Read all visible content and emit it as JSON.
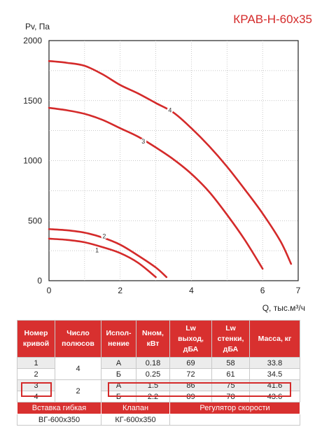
{
  "chart_data": {
    "type": "line",
    "title": "КРАВ-Н-60х35",
    "ylabel": "Pv, Па",
    "xlabel": "Q, тыс.м³/ч",
    "xlim": [
      0,
      7
    ],
    "ylim": [
      0,
      2000
    ],
    "x_ticks": [
      "0",
      "2",
      "4",
      "6",
      "7"
    ],
    "y_ticks": [
      "0",
      "500",
      "1000",
      "1500",
      "2000"
    ],
    "grid": true,
    "color": "#d42a2a",
    "series": [
      {
        "name": "1",
        "points": [
          [
            0,
            350
          ],
          [
            0.5,
            340
          ],
          [
            1.0,
            320
          ],
          [
            1.5,
            280
          ],
          [
            2.0,
            230
          ],
          [
            2.5,
            150
          ],
          [
            3.0,
            30
          ]
        ]
      },
      {
        "name": "2",
        "points": [
          [
            0,
            430
          ],
          [
            0.5,
            420
          ],
          [
            1.0,
            400
          ],
          [
            1.5,
            360
          ],
          [
            2.0,
            300
          ],
          [
            2.5,
            210
          ],
          [
            3.0,
            110
          ],
          [
            3.3,
            30
          ]
        ]
      },
      {
        "name": "3",
        "points": [
          [
            0,
            1440
          ],
          [
            0.5,
            1420
          ],
          [
            1.0,
            1390
          ],
          [
            1.5,
            1340
          ],
          [
            2.0,
            1270
          ],
          [
            2.5,
            1200
          ],
          [
            3.0,
            1110
          ],
          [
            3.5,
            1010
          ],
          [
            4.0,
            890
          ],
          [
            4.5,
            740
          ],
          [
            5.0,
            550
          ],
          [
            5.5,
            340
          ],
          [
            6.0,
            100
          ]
        ]
      },
      {
        "name": "4",
        "points": [
          [
            0,
            1830
          ],
          [
            0.5,
            1815
          ],
          [
            1.0,
            1790
          ],
          [
            1.5,
            1720
          ],
          [
            2.0,
            1630
          ],
          [
            2.5,
            1560
          ],
          [
            3.0,
            1480
          ],
          [
            3.5,
            1400
          ],
          [
            4.0,
            1270
          ],
          [
            4.5,
            1120
          ],
          [
            5.0,
            950
          ],
          [
            5.5,
            760
          ],
          [
            6.0,
            560
          ],
          [
            6.5,
            330
          ],
          [
            6.8,
            140
          ]
        ]
      }
    ],
    "label_points": {
      "1": [
        1.35,
        255
      ],
      "2": [
        1.55,
        370
      ],
      "3": [
        2.65,
        1160
      ],
      "4": [
        3.4,
        1420
      ]
    }
  },
  "table": {
    "headers": [
      "Номер\nкривой",
      "Число\nполюсов",
      "Испол-\nнение",
      "Nном,\nкВт",
      "Lw\nвыход,\nдБА",
      "Lw\nстенки,\nдБА",
      "Масса, кг"
    ],
    "rows": [
      {
        "curve": "1",
        "poles": "4",
        "variant": "А",
        "power": "0.18",
        "lw_out": "69",
        "lw_wall": "58",
        "mass": "33.8"
      },
      {
        "curve": "2",
        "variant": "Б",
        "power": "0.25",
        "lw_out": "72",
        "lw_wall": "61",
        "mass": "34.5"
      },
      {
        "curve": "3",
        "poles": "2",
        "variant": "А",
        "power": "1.5",
        "lw_out": "86",
        "lw_wall": "75",
        "mass": "41.6"
      },
      {
        "curve": "4",
        "variant": "Б",
        "power": "2.2",
        "lw_out": "89",
        "lw_wall": "78",
        "mass": "43.6"
      }
    ],
    "footer_labels": [
      "Вставка гибкая",
      "Клапан",
      "Регулятор скорости"
    ],
    "footer_values": [
      "ВГ-600х350",
      "КГ-600х350",
      ""
    ]
  },
  "colors": {
    "accent": "#d42a2a",
    "header": "#d8302f",
    "shade": "#ececec"
  }
}
